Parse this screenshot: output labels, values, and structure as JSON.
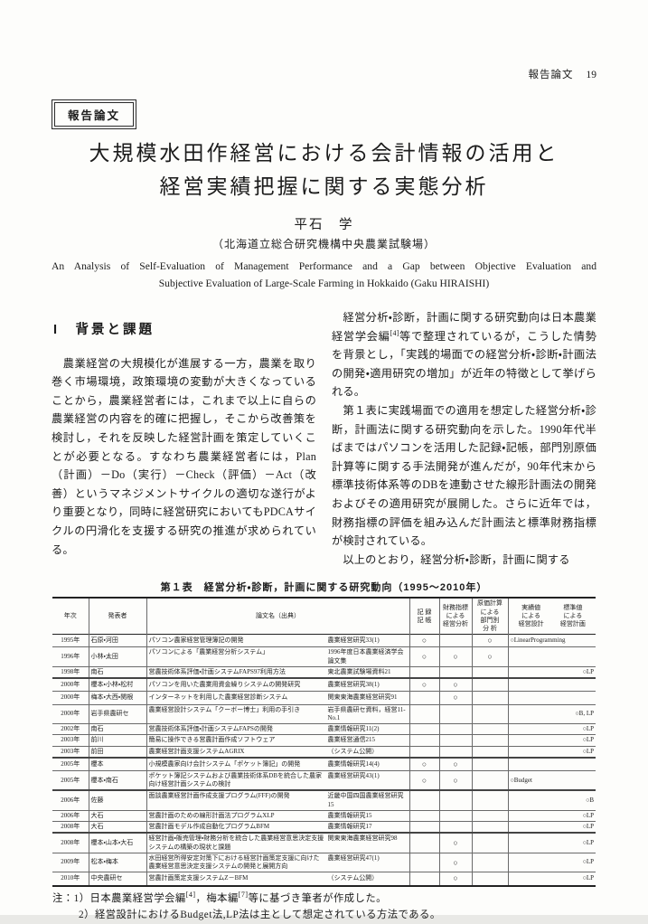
{
  "running_head": {
    "label": "報告論文",
    "page_number": "19"
  },
  "badge": {
    "label": "報告論文"
  },
  "title": {
    "line1": "大規模水田作経営における会計情報の活用と",
    "line2": "経営実績把握に関する実態分析"
  },
  "author": "平石　学",
  "affiliation": "（北海道立総合研究機構中央農業試験場）",
  "english_title": {
    "line1": "An Analysis of Self-Evaluation of Management Performance and a Gap between Objective Evaluation and",
    "line2": "Subjective Evaluation of Large-Scale Farming in Hokkaido (Gaku HIRAISHI)"
  },
  "left_column": {
    "section_heading": "I　背景と課題",
    "paragraph": "　農業経営の大規模化が進展する一方，農業を取り巻く市場環境，政策環境の変動が大きくなっていることから，農業経営者には，これまで以上に自らの農業経営の内容を的確に把握し，そこから改善策を検討し，それを反映した経営計画を策定していくことが必要となる。すなわち農業経営者には，Plan（計画）－Do（実行）－Check（評価）－Act（改善）というマネジメントサイクルの適切な遂行がより重要となり，同時に経営研究においてもPDCAサイクルの円滑化を支援する研究の推進が求められている。"
  },
  "right_column": {
    "p1_pre": "　経営分析・診断，計画に関する研究動向は日本農業経営学会編",
    "p1_sup": "[4]",
    "p1_post": "等で整理されているが，こうした情勢を背景とし，「実践的場面での経営分析・診断・計画法の開発・適用研究の増加」が近年の特徴として挙げられる。",
    "p2": "　第１表に実践場面での適用を想定した経営分析・診断，計画法に関する研究動向を示した。1990年代半ばまではパソコンを活用した記録・記帳，部門別原価計算等に関する手法開発が進んだが，90年代末から標準技術体系等のDBを連動させた線形計画法の開発およびその適用研究が展開した。さらに近年では，財務指標の評価を組み込んだ計画法と標準財務指標が検討されている。",
    "p3": "　以上のとおり，経営分析・診断，計画に関する"
  },
  "table": {
    "caption": "第１表　経営分析・診断，計画に関する研究動向（1995～2010年）",
    "headers": {
      "year": "年次",
      "authors": "発表者",
      "paper": "論文名（出典）",
      "record": "記 録\n記 帳",
      "financial": "財務指標\nによる\n経営分析",
      "cost": "原価計算\nによる\n部門別\n分 析",
      "plan_actual": "実績値\nによる\n経営設計",
      "plan_standard": "標準値\nによる\n経営計画"
    },
    "mark": "○",
    "rows": [
      {
        "year": "1995年",
        "authors": "石原・河田",
        "title": "パソコン農家経営管理簿記の開発",
        "source": "農業経営研究33(1)",
        "rec": "○",
        "fin": "",
        "cost": "○",
        "plan_left": "○LinearProgramming",
        "plan_right": "",
        "thick": false
      },
      {
        "year": "1996年",
        "authors": "小林・太田",
        "title": "パソコンによる「農業経営分析システム」",
        "source": "1996年度日本農業経済学会論文集",
        "rec": "○",
        "fin": "○",
        "cost": "○",
        "plan_left": "",
        "plan_right": "",
        "thick": false
      },
      {
        "year": "1998年",
        "authors": "南石",
        "title": "営農技術体系評価・計画システムFAPS97利用方法",
        "source": "東北農業試験場資料21",
        "rec": "",
        "fin": "",
        "cost": "",
        "plan_left": "",
        "plan_right": "○LP",
        "thick": true
      },
      {
        "year": "2000年",
        "authors": "櫻本・小林・松村",
        "title": "パソコンを用いた農業用資金繰りシステムの開発研究",
        "source": "農業経営研究38(1)",
        "rec": "○",
        "fin": "○",
        "cost": "",
        "plan_left": "",
        "plan_right": "",
        "thick": false
      },
      {
        "year": "2000年",
        "authors": "梅本・大西・関根",
        "title": "インターネットを利用した農業経営診断システム",
        "source": "関東東海農業経営研究91",
        "rec": "",
        "fin": "○",
        "cost": "",
        "plan_left": "",
        "plan_right": "",
        "thick": false
      },
      {
        "year": "2000年",
        "authors": "岩手県農研セ",
        "title": "農業経営設計システム「クーボー博士」利用の手引き",
        "source": "岩手県農研セ資料，経営11-No.1",
        "rec": "",
        "fin": "",
        "cost": "",
        "plan_left": "",
        "plan_right": "○B, LP",
        "thick": false
      },
      {
        "year": "2002年",
        "authors": "南石",
        "title": "営農技術体系評価・計画システムFAPSの開発",
        "source": "農業情報研究11(2)",
        "rec": "",
        "fin": "",
        "cost": "",
        "plan_left": "",
        "plan_right": "○LP",
        "thick": false
      },
      {
        "year": "2003年",
        "authors": "前川",
        "title": "簡易に操作できる営農計画作成ソフトウェア",
        "source": "農業経営通信215",
        "rec": "",
        "fin": "",
        "cost": "",
        "plan_left": "",
        "plan_right": "○LP",
        "thick": false
      },
      {
        "year": "2003年",
        "authors": "前田",
        "title": "農業経営計画支援システムAGRIX",
        "source": "（システム公開）",
        "rec": "",
        "fin": "",
        "cost": "",
        "plan_left": "",
        "plan_right": "○LP",
        "thick": true
      },
      {
        "year": "2005年",
        "authors": "櫻本",
        "title": "小規模農家向け会計システム「ポケット簿記」の開発",
        "source": "農業情報研究14(4)",
        "rec": "○",
        "fin": "○",
        "cost": "",
        "plan_left": "",
        "plan_right": "",
        "thick": false
      },
      {
        "year": "2005年",
        "authors": "櫻本・南石",
        "title": "ポケット簿記システムおよび農業技術体系DBを統合した農家向け経営計画システムの検討",
        "source": "農業経営研究43(1)",
        "rec": "○",
        "fin": "○",
        "cost": "",
        "plan_left": "○Budget",
        "plan_right": "",
        "thick": true
      },
      {
        "year": "2006年",
        "authors": "佐藤",
        "title": "面談農業経営計画作成支援プログラム(FFF)の開発",
        "source": "近畿中国四国農業経営研究15",
        "rec": "",
        "fin": "",
        "cost": "",
        "plan_left": "",
        "plan_right": "○B",
        "thick": false
      },
      {
        "year": "2006年",
        "authors": "大石",
        "title": "営農計画のための線形計画法プログラムXLP",
        "source": "農業情報研究15",
        "rec": "",
        "fin": "",
        "cost": "",
        "plan_left": "",
        "plan_right": "○LP",
        "thick": false
      },
      {
        "year": "2008年",
        "authors": "大石",
        "title": "営農計画モデル作成自動化プログラムBFM",
        "source": "農業情報研究17",
        "rec": "",
        "fin": "",
        "cost": "",
        "plan_left": "",
        "plan_right": "○LP",
        "thick": true
      },
      {
        "year": "2008年",
        "authors": "櫻本・山本・大石",
        "title": "経営計画・販売管理・財務分析を統合した農業経営意思決定支援システムの構築の現状と課題",
        "source": "関東東海農業経営研究98",
        "rec": "",
        "fin": "○",
        "cost": "",
        "plan_left": "",
        "plan_right": "○LP",
        "thick": false
      },
      {
        "year": "2009年",
        "authors": "松本・梅本",
        "title": "水田経営所得安定対策下における経営計画策定支援に向けた農業経営意思決定支援システムの開発と展開方向",
        "source": "農業経営研究47(1)",
        "rec": "",
        "fin": "○",
        "cost": "",
        "plan_left": "",
        "plan_right": "○LP",
        "thick": false
      },
      {
        "year": "2010年",
        "authors": "中央農研セ",
        "title": "営農計画策定支援システムZ－BFM",
        "source": "（システム公開）",
        "rec": "",
        "fin": "○",
        "cost": "",
        "plan_left": "",
        "plan_right": "○LP",
        "thick": false
      }
    ],
    "notes": {
      "n1_pre": "注：1）日本農業経営学会編",
      "n1_sup1": "[4]",
      "n1_mid": "，梅本編",
      "n1_sup2": "[7]",
      "n1_post": "等に基づき筆者が作成した。",
      "n2": "2）経営設計におけるBudget法,LP法は主として想定されている方法である。"
    }
  }
}
